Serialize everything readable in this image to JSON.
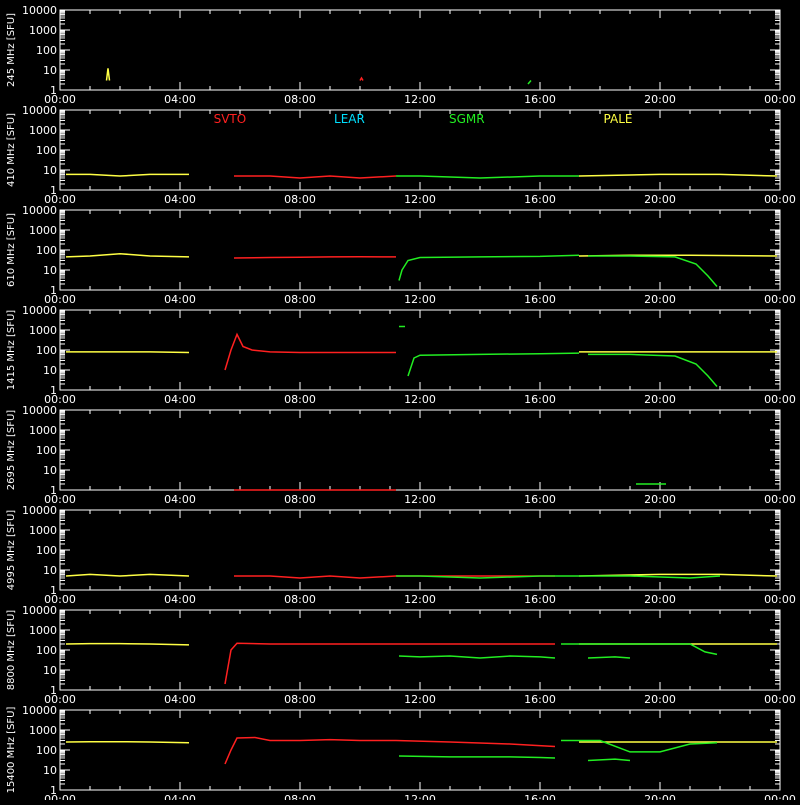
{
  "chart_data": {
    "type": "line",
    "x_unit": "UT time",
    "x_ticks": [
      "00:00",
      "04:00",
      "08:00",
      "12:00",
      "16:00",
      "20:00",
      "00:00"
    ],
    "xlim_hours": [
      0,
      24
    ],
    "yscale": "log",
    "ylim": [
      1,
      10000
    ],
    "y_ticks": [
      "1",
      "10",
      "100",
      "1000",
      "10000"
    ],
    "station_labels": [
      "SVTO",
      "LEAR",
      "SGMR",
      "PALE"
    ],
    "station_colors": {
      "SVTO": "#ff2020",
      "LEAR": "#00e0ff",
      "SGMR": "#22ee22",
      "PALE": "#ffff44"
    },
    "axis_color": "#ffffff",
    "panels": [
      {
        "ylabel": "245 MHz [SFU]",
        "series": [
          {
            "station": "PALE",
            "segments": [
              [
                [
                  1.55,
                  3
                ],
                [
                  1.6,
                  12
                ],
                [
                  1.65,
                  3
                ]
              ]
            ]
          },
          {
            "station": "SVTO",
            "segments": [
              [
                [
                  10,
                  3
                ],
                [
                  10.05,
                  4
                ],
                [
                  10.1,
                  3
                ]
              ]
            ]
          },
          {
            "station": "SGMR",
            "segments": [
              [
                [
                  15.6,
                  2
                ],
                [
                  15.7,
                  3
                ]
              ]
            ]
          }
        ]
      },
      {
        "ylabel": "410 MHz [SFU]",
        "series": [
          {
            "station": "PALE",
            "segments": [
              [
                [
                  0.2,
                  6
                ],
                [
                  1,
                  6
                ],
                [
                  2,
                  5
                ],
                [
                  3,
                  6
                ],
                [
                  4.3,
                  6
                ]
              ],
              [
                [
                  17.3,
                  5
                ],
                [
                  20,
                  6
                ],
                [
                  22,
                  6
                ],
                [
                  23.9,
                  5
                ]
              ]
            ]
          },
          {
            "station": "SVTO",
            "segments": [
              [
                [
                  5.8,
                  5
                ],
                [
                  7,
                  5
                ],
                [
                  8,
                  4
                ],
                [
                  9,
                  5
                ],
                [
                  10,
                  4
                ],
                [
                  11.2,
                  5
                ]
              ]
            ]
          },
          {
            "station": "SGMR",
            "segments": [
              [
                [
                  11.2,
                  5
                ],
                [
                  12,
                  5
                ],
                [
                  14,
                  4
                ],
                [
                  16,
                  5
                ],
                [
                  17.3,
                  5
                ]
              ]
            ]
          }
        ]
      },
      {
        "ylabel": "610 MHz [SFU]",
        "series": [
          {
            "station": "PALE",
            "segments": [
              [
                [
                  0.2,
                  45
                ],
                [
                  1,
                  50
                ],
                [
                  2,
                  65
                ],
                [
                  3,
                  50
                ],
                [
                  4.3,
                  45
                ]
              ],
              [
                [
                  17.3,
                  50
                ],
                [
                  19,
                  55
                ],
                [
                  21,
                  55
                ],
                [
                  23.9,
                  50
                ]
              ]
            ]
          },
          {
            "station": "SVTO",
            "segments": [
              [
                [
                  5.8,
                  40
                ],
                [
                  7,
                  42
                ],
                [
                  8,
                  43
                ],
                [
                  9,
                  45
                ],
                [
                  10,
                  46
                ],
                [
                  11.2,
                  45
                ]
              ]
            ]
          },
          {
            "station": "SGMR",
            "segments": [
              [
                [
                  11.3,
                  3
                ],
                [
                  11.4,
                  10
                ],
                [
                  11.6,
                  30
                ],
                [
                  12,
                  42
                ],
                [
                  14,
                  45
                ],
                [
                  16,
                  48
                ],
                [
                  17.3,
                  55
                ]
              ],
              [
                [
                  17.6,
                  50
                ],
                [
                  19,
                  50
                ],
                [
                  20.5,
                  45
                ],
                [
                  21.2,
                  20
                ],
                [
                  21.6,
                  5
                ],
                [
                  21.9,
                  1.5
                ]
              ]
            ]
          }
        ]
      },
      {
        "ylabel": "1415 MHz [SFU]",
        "series": [
          {
            "station": "PALE",
            "segments": [
              [
                [
                  0.2,
                  80
                ],
                [
                  1,
                  80
                ],
                [
                  2,
                  80
                ],
                [
                  3,
                  80
                ],
                [
                  4.3,
                  75
                ]
              ],
              [
                [
                  17.3,
                  80
                ],
                [
                  19,
                  80
                ],
                [
                  21,
                  80
                ],
                [
                  23.9,
                  80
                ]
              ]
            ]
          },
          {
            "station": "SVTO",
            "segments": [
              [
                [
                  5.5,
                  10
                ],
                [
                  5.7,
                  100
                ],
                [
                  5.9,
                  600
                ],
                [
                  6.1,
                  150
                ],
                [
                  6.4,
                  100
                ],
                [
                  7,
                  80
                ],
                [
                  8,
                  75
                ],
                [
                  9,
                  75
                ],
                [
                  10,
                  75
                ],
                [
                  11.2,
                  75
                ]
              ]
            ]
          },
          {
            "station": "SGMR",
            "segments": [
              [
                [
                  11.3,
                  1500
                ],
                [
                  11.5,
                  1500
                ]
              ],
              [
                [
                  11.6,
                  5
                ],
                [
                  11.8,
                  40
                ],
                [
                  12,
                  55
                ],
                [
                  14,
                  60
                ],
                [
                  16,
                  65
                ],
                [
                  17.3,
                  70
                ]
              ],
              [
                [
                  17.6,
                  60
                ],
                [
                  19,
                  60
                ],
                [
                  20.5,
                  50
                ],
                [
                  21.2,
                  20
                ],
                [
                  21.6,
                  5
                ],
                [
                  21.9,
                  1.5
                ]
              ]
            ]
          }
        ]
      },
      {
        "ylabel": "2695 MHz [SFU]",
        "series": [
          {
            "station": "SVTO",
            "segments": [
              [
                [
                  5.8,
                  1
                ],
                [
                  11.2,
                  1
                ]
              ]
            ]
          },
          {
            "station": "SGMR",
            "segments": [
              [
                [
                  19.2,
                  2
                ],
                [
                  20.2,
                  2
                ]
              ]
            ]
          }
        ]
      },
      {
        "ylabel": "4995 MHz [SFU]",
        "series": [
          {
            "station": "PALE",
            "segments": [
              [
                [
                  0.2,
                  5
                ],
                [
                  1,
                  6
                ],
                [
                  2,
                  5
                ],
                [
                  3,
                  6
                ],
                [
                  4.3,
                  5
                ]
              ],
              [
                [
                  17.3,
                  5
                ],
                [
                  20,
                  6
                ],
                [
                  22,
                  6
                ],
                [
                  23.9,
                  5
                ]
              ]
            ]
          },
          {
            "station": "SVTO",
            "segments": [
              [
                [
                  5.8,
                  5
                ],
                [
                  7,
                  5
                ],
                [
                  8,
                  4
                ],
                [
                  9,
                  5
                ],
                [
                  10,
                  4
                ],
                [
                  11.2,
                  5
                ],
                [
                  14,
                  5
                ],
                [
                  16.5,
                  5
                ]
              ]
            ]
          },
          {
            "station": "SGMR",
            "segments": [
              [
                [
                  11.2,
                  5
                ],
                [
                  12,
                  5
                ],
                [
                  14,
                  4
                ],
                [
                  16,
                  5
                ],
                [
                  17.3,
                  5
                ],
                [
                  19,
                  5
                ],
                [
                  21,
                  4
                ],
                [
                  22,
                  5
                ]
              ]
            ]
          }
        ]
      },
      {
        "ylabel": "8800 MHz [SFU]",
        "series": [
          {
            "station": "PALE",
            "segments": [
              [
                [
                  0.2,
                  200
                ],
                [
                  1,
                  210
                ],
                [
                  2,
                  210
                ],
                [
                  3,
                  200
                ],
                [
                  4.3,
                  180
                ]
              ],
              [
                [
                  17.3,
                  200
                ],
                [
                  19,
                  200
                ],
                [
                  21,
                  200
                ],
                [
                  23.9,
                  200
                ]
              ]
            ]
          },
          {
            "station": "SVTO",
            "segments": [
              [
                [
                  5.5,
                  2
                ],
                [
                  5.7,
                  100
                ],
                [
                  5.9,
                  220
                ],
                [
                  7,
                  200
                ],
                [
                  8,
                  200
                ],
                [
                  9,
                  200
                ],
                [
                  10,
                  200
                ],
                [
                  11.2,
                  200
                ],
                [
                  14,
                  200
                ],
                [
                  16.5,
                  200
                ]
              ]
            ]
          },
          {
            "station": "SGMR",
            "segments": [
              [
                [
                  11.3,
                  50
                ],
                [
                  12,
                  45
                ],
                [
                  13,
                  50
                ],
                [
                  14,
                  40
                ],
                [
                  15,
                  50
                ],
                [
                  16,
                  45
                ],
                [
                  16.5,
                  40
                ]
              ],
              [
                [
                  16.7,
                  200
                ],
                [
                  18,
                  200
                ],
                [
                  20,
                  200
                ],
                [
                  21,
                  200
                ],
                [
                  21.5,
                  80
                ],
                [
                  21.9,
                  60
                ]
              ],
              [
                [
                  17.6,
                  40
                ],
                [
                  18.5,
                  45
                ],
                [
                  19,
                  40
                ]
              ]
            ]
          }
        ]
      },
      {
        "ylabel": "15400 MHz [SFU]",
        "series": [
          {
            "station": "PALE",
            "segments": [
              [
                [
                  0.2,
                  250
                ],
                [
                  1,
                  260
                ],
                [
                  2,
                  260
                ],
                [
                  3,
                  250
                ],
                [
                  4.3,
                  230
                ]
              ],
              [
                [
                  17.3,
                  250
                ],
                [
                  19,
                  250
                ],
                [
                  21,
                  250
                ],
                [
                  23.9,
                  250
                ]
              ]
            ]
          },
          {
            "station": "SVTO",
            "segments": [
              [
                [
                  5.5,
                  20
                ],
                [
                  5.7,
                  100
                ],
                [
                  5.9,
                  400
                ],
                [
                  6.5,
                  420
                ],
                [
                  7,
                  300
                ],
                [
                  8,
                  300
                ],
                [
                  9,
                  330
                ],
                [
                  10,
                  300
                ],
                [
                  11.2,
                  300
                ],
                [
                  13,
                  250
                ],
                [
                  15,
                  200
                ],
                [
                  16.5,
                  150
                ]
              ]
            ]
          },
          {
            "station": "SGMR",
            "segments": [
              [
                [
                  11.3,
                  50
                ],
                [
                  12,
                  48
                ],
                [
                  13,
                  45
                ],
                [
                  14,
                  45
                ],
                [
                  15,
                  45
                ],
                [
                  16,
                  42
                ],
                [
                  16.5,
                  40
                ]
              ],
              [
                [
                  16.7,
                  300
                ],
                [
                  18,
                  300
                ],
                [
                  19,
                  80
                ],
                [
                  20,
                  80
                ],
                [
                  21,
                  200
                ],
                [
                  21.9,
                  230
                ]
              ],
              [
                [
                  17.6,
                  30
                ],
                [
                  18.5,
                  35
                ],
                [
                  19,
                  30
                ]
              ]
            ]
          }
        ]
      }
    ]
  }
}
